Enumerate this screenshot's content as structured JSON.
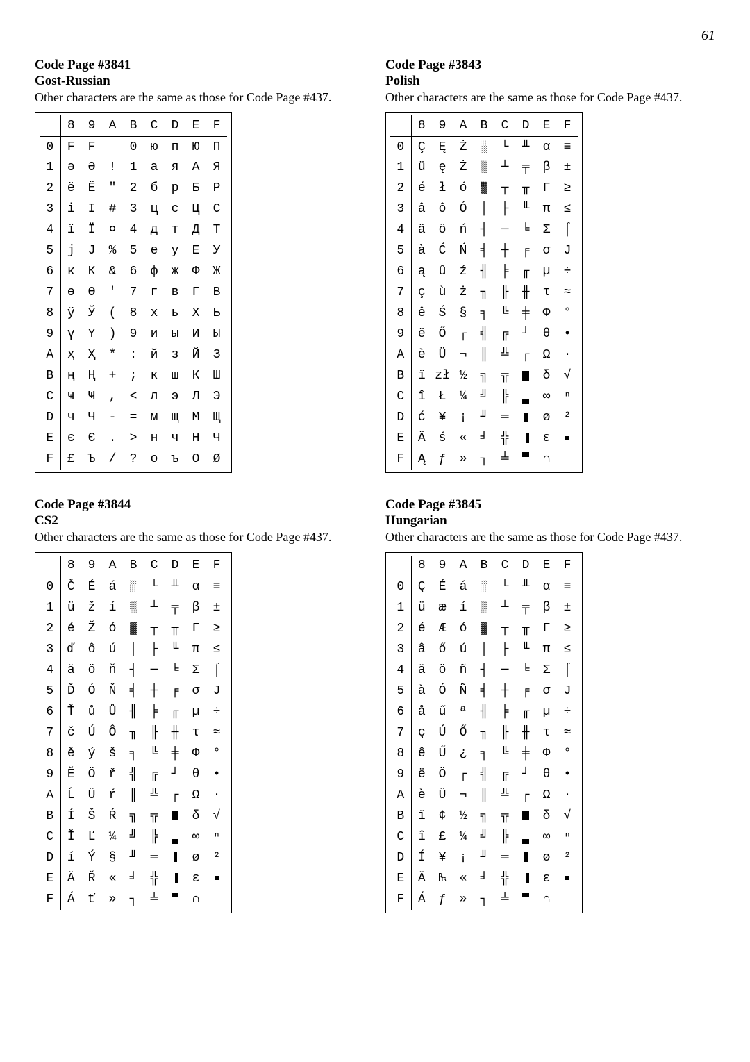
{
  "page_number": "61",
  "note_text": "Other characters are the same as those for Code Page #437.",
  "col_headers": [
    "8",
    "9",
    "A",
    "B",
    "C",
    "D",
    "E",
    "F"
  ],
  "row_headers": [
    "0",
    "1",
    "2",
    "3",
    "4",
    "5",
    "6",
    "7",
    "8",
    "9",
    "A",
    "B",
    "C",
    "D",
    "E",
    "F"
  ],
  "pages": [
    {
      "title": "Code Page #3841",
      "subtitle": "Gost-Russian",
      "rows": [
        [
          "F",
          "F",
          " ",
          "0",
          "ю",
          "п",
          "Ю",
          "П"
        ],
        [
          "ә",
          "Ә",
          "!",
          "1",
          "a",
          "я",
          "А",
          "Я"
        ],
        [
          "ë",
          "Ë",
          "\"",
          "2",
          "б",
          "р",
          "Б",
          "Р"
        ],
        [
          "i",
          "I",
          "#",
          "3",
          "ц",
          "с",
          "Ц",
          "С"
        ],
        [
          "ï",
          "Ï",
          "¤",
          "4",
          "д",
          "т",
          "Д",
          "Т"
        ],
        [
          "j",
          "J",
          "%",
          "5",
          "е",
          "у",
          "Е",
          "У"
        ],
        [
          "к",
          "К",
          "&",
          "6",
          "ф",
          "ж",
          "Ф",
          "Ж"
        ],
        [
          "ө",
          "Ө",
          "'",
          "7",
          "г",
          "в",
          "Г",
          "В"
        ],
        [
          "ў",
          "Ў",
          "(",
          "8",
          "х",
          "ь",
          "Х",
          "Ь"
        ],
        [
          "ү",
          "Ү",
          ")",
          "9",
          "и",
          "ы",
          "И",
          "Ы"
        ],
        [
          "ҳ",
          "Ҳ",
          "*",
          ":",
          "й",
          "з",
          "Й",
          "З"
        ],
        [
          "ң",
          "Ң",
          "+",
          ";",
          "к",
          "ш",
          "К",
          "Ш"
        ],
        [
          "ҹ",
          "Ҹ",
          ",",
          "<",
          "л",
          "э",
          "Л",
          "Э"
        ],
        [
          "ч",
          "Ч",
          "-",
          "=",
          "м",
          "щ",
          "М",
          "Щ"
        ],
        [
          "є",
          "Є",
          ".",
          ">",
          "н",
          "ч",
          "Н",
          "Ч"
        ],
        [
          "£",
          "Ъ",
          "/",
          "?",
          "о",
          "ъ",
          "О",
          "Ø"
        ]
      ]
    },
    {
      "title": "Code Page #3843",
      "subtitle": "Polish",
      "rows": [
        [
          "Ç",
          "Ę",
          "Ż",
          "░",
          "└",
          "╨",
          "α",
          "≡"
        ],
        [
          "ü",
          "ę",
          "Ż",
          "▒",
          "┴",
          "╤",
          "β",
          "±"
        ],
        [
          "é",
          "ł",
          "ó",
          "▓",
          "┬",
          "╥",
          "Γ",
          "≥"
        ],
        [
          "â",
          "ô",
          "Ó",
          "│",
          "├",
          "╙",
          "π",
          "≤"
        ],
        [
          "ä",
          "ö",
          "ń",
          "┤",
          "─",
          "╘",
          "Σ",
          "⌠"
        ],
        [
          "à",
          "Ć",
          "Ń",
          "╡",
          "┼",
          "╒",
          "σ",
          "J"
        ],
        [
          "ą",
          "û",
          "ź",
          "╢",
          "╞",
          "╓",
          "µ",
          "÷"
        ],
        [
          "ç",
          "ù",
          "ż",
          "╖",
          "╟",
          "╫",
          "τ",
          "≈"
        ],
        [
          "ê",
          "Ś",
          "§",
          "╕",
          "╚",
          "╪",
          "Φ",
          "°"
        ],
        [
          "ë",
          "Ő",
          "┌",
          "╣",
          "╔",
          "┘",
          "θ",
          "•"
        ],
        [
          "è",
          "Ü",
          "¬",
          "║",
          "╩",
          "┌",
          "Ω",
          "·"
        ],
        [
          "ï",
          "zł",
          "½",
          "╗",
          "╦",
          "█",
          "δ",
          "√"
        ],
        [
          "î",
          "Ł",
          "¼",
          "╝",
          "╠",
          "▄",
          "∞",
          "ⁿ"
        ],
        [
          "ć",
          "¥",
          "¡",
          "╜",
          "═",
          "▌",
          "ø",
          "²"
        ],
        [
          "Ä",
          "ś",
          "«",
          "╛",
          "╬",
          "▐",
          "ε",
          "■"
        ],
        [
          "Ą",
          "ƒ",
          "»",
          "┐",
          "╧",
          "▀",
          "∩",
          " "
        ]
      ]
    },
    {
      "title": "Code Page #3844",
      "subtitle": "CS2",
      "rows": [
        [
          "Č",
          "É",
          "á",
          "░",
          "└",
          "╨",
          "α",
          "≡"
        ],
        [
          "ü",
          "ž",
          "í",
          "▒",
          "┴",
          "╤",
          "β",
          "±"
        ],
        [
          "é",
          "Ž",
          "ó",
          "▓",
          "┬",
          "╥",
          "Γ",
          "≥"
        ],
        [
          "ď",
          "ô",
          "ú",
          "│",
          "├",
          "╙",
          "π",
          "≤"
        ],
        [
          "ä",
          "ö",
          "ň",
          "┤",
          "─",
          "╘",
          "Σ",
          "⌠"
        ],
        [
          "Ď",
          "Ó",
          "Ň",
          "╡",
          "┼",
          "╒",
          "σ",
          "J"
        ],
        [
          "Ť",
          "ů",
          "Ů",
          "╢",
          "╞",
          "╓",
          "µ",
          "÷"
        ],
        [
          "č",
          "Ú",
          "Ô",
          "╖",
          "╟",
          "╫",
          "τ",
          "≈"
        ],
        [
          "ě",
          "ý",
          "š",
          "╕",
          "╚",
          "╪",
          "Φ",
          "°"
        ],
        [
          "Ě",
          "Ö",
          "ř",
          "╣",
          "╔",
          "┘",
          "θ",
          "•"
        ],
        [
          "Ĺ",
          "Ü",
          "ŕ",
          "║",
          "╩",
          "┌",
          "Ω",
          "·"
        ],
        [
          "Í",
          "Š",
          "Ŕ",
          "╗",
          "╦",
          "█",
          "δ",
          "√"
        ],
        [
          "Ĭ",
          "Ľ",
          "¼",
          "╝",
          "╠",
          "▄",
          "∞",
          "ⁿ"
        ],
        [
          "í",
          "Ý",
          "§",
          "╜",
          "═",
          "▌",
          "ø",
          "²"
        ],
        [
          "Ä",
          "Ř",
          "«",
          "╛",
          "╬",
          "▐",
          "ε",
          "■"
        ],
        [
          "Á",
          "ť",
          "»",
          "┐",
          "╧",
          "▀",
          "∩",
          " "
        ]
      ]
    },
    {
      "title": "Code Page #3845",
      "subtitle": "Hungarian",
      "rows": [
        [
          "Ç",
          "É",
          "á",
          "░",
          "└",
          "╨",
          "α",
          "≡"
        ],
        [
          "ü",
          "æ",
          "í",
          "▒",
          "┴",
          "╤",
          "β",
          "±"
        ],
        [
          "é",
          "Æ",
          "ó",
          "▓",
          "┬",
          "╥",
          "Γ",
          "≥"
        ],
        [
          "â",
          "ő",
          "ú",
          "│",
          "├",
          "╙",
          "π",
          "≤"
        ],
        [
          "ä",
          "ö",
          "ñ",
          "┤",
          "─",
          "╘",
          "Σ",
          "⌠"
        ],
        [
          "à",
          "Ó",
          "Ñ",
          "╡",
          "┼",
          "╒",
          "σ",
          "J"
        ],
        [
          "å",
          "ű",
          "ª",
          "╢",
          "╞",
          "╓",
          "µ",
          "÷"
        ],
        [
          "ç",
          "Ú",
          "Ő",
          "╖",
          "╟",
          "╫",
          "τ",
          "≈"
        ],
        [
          "ê",
          "Ű",
          "¿",
          "╕",
          "╚",
          "╪",
          "Φ",
          "°"
        ],
        [
          "ë",
          "Ö",
          "┌",
          "╣",
          "╔",
          "┘",
          "θ",
          "•"
        ],
        [
          "è",
          "Ü",
          "¬",
          "║",
          "╩",
          "┌",
          "Ω",
          "·"
        ],
        [
          "ï",
          "¢",
          "½",
          "╗",
          "╦",
          "█",
          "δ",
          "√"
        ],
        [
          "î",
          "£",
          "¼",
          "╝",
          "╠",
          "▄",
          "∞",
          "ⁿ"
        ],
        [
          "Í",
          "¥",
          "¡",
          "╜",
          "═",
          "▌",
          "ø",
          "²"
        ],
        [
          "Ä",
          "₧",
          "«",
          "╛",
          "╬",
          "▐",
          "ε",
          "■"
        ],
        [
          "Á",
          "ƒ",
          "»",
          "┐",
          "╧",
          "▀",
          "∩",
          " "
        ]
      ]
    }
  ]
}
